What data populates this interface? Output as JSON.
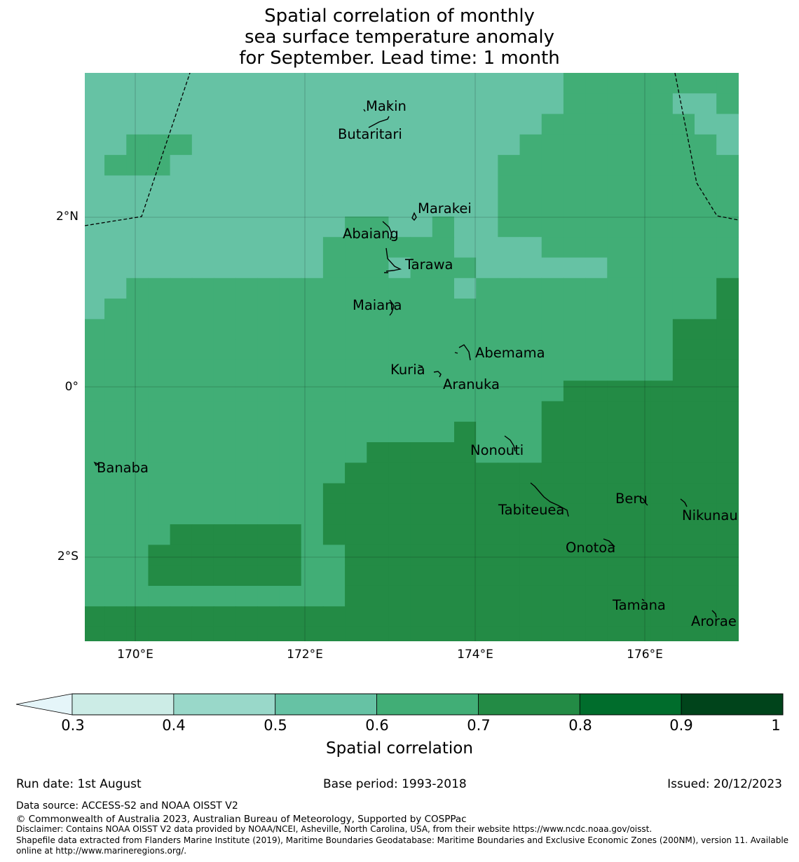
{
  "title": {
    "line1": "Spatial correlation of monthly",
    "line2": "sea surface temperature anomaly",
    "line3": "for September. Lead time: 1 month"
  },
  "axes": {
    "lat_ticks": [
      "2°N",
      "0°",
      "2°S"
    ],
    "lon_ticks": [
      "170°E",
      "172°E",
      "174°E",
      "176°E"
    ]
  },
  "places": [
    {
      "name": "Makin"
    },
    {
      "name": "Butaritari"
    },
    {
      "name": "Marakei"
    },
    {
      "name": "Abaiang"
    },
    {
      "name": "Tarawa"
    },
    {
      "name": "Maiana"
    },
    {
      "name": "Abemama"
    },
    {
      "name": "Kuria"
    },
    {
      "name": "Aranuka"
    },
    {
      "name": "Nonouti"
    },
    {
      "name": "Banaba"
    },
    {
      "name": "Tabiteuea"
    },
    {
      "name": "Beru"
    },
    {
      "name": "Nikunau"
    },
    {
      "name": "Onotoa"
    },
    {
      "name": "Tamana"
    },
    {
      "name": "Arorae"
    }
  ],
  "colorbar": {
    "title": "Spatial correlation",
    "ticks": [
      "0.3",
      "0.4",
      "0.5",
      "0.6",
      "0.7",
      "0.8",
      "0.9",
      "1"
    ],
    "colors": [
      "#e5f5f9",
      "#ccece6",
      "#99d8c9",
      "#66c2a4",
      "#41ae76",
      "#238b45",
      "#006d2c",
      "#00441b"
    ]
  },
  "footer": {
    "run_date": "Run date: 1st August",
    "base_period": "Base period: 1993-2018",
    "issued": "Issued: 20/12/2023",
    "data_source": "Data source: ACCESS-S2 and NOAA OISST V2",
    "copyright": "© Commonwealth of Australia 2023, Australian Bureau of Meteorology, Supported by COSPPac",
    "disclaimer": "Disclaimer: Contains NOAA OISST V2 data provided by NOAA/NCEI, Asheville, North Carolina, USA, from their website https://www.ncdc.noaa.gov/oisst.",
    "shapefile1": "Shapefile data extracted from Flanders Marine Institute (2019), Maritime Boundaries Geodatabase: Maritime Boundaries and Exclusive Economic Zones (200NM), version 11. Available",
    "shapefile2": "online at http://www.marineregions.org/."
  },
  "map_data": {
    "legend_level_per_cell": "0=0.5-0.6, 1=0.6-0.7, 2=0.7-0.8",
    "grid": [
      "000000000000000000000011111111",
      "000000000000000000000011111001",
      "000000000000000000000111111100",
      "001110000000000000001111111110",
      "011100000000000000011111111111",
      "000000000000000000011111111111",
      "000000000000000000011111111111",
      "000000000000110010011111111111",
      "000000000001111110000111111111",
      "000000000001110111000000111111",
      "001111111111111110111111111112",
      "011111111111111111111111111112",
      "111111111111111111111111111222",
      "111111111111111111111111111222",
      "111111111111111111111111111222",
      "111111111111111111111122222222",
      "111111111111111111111222222222",
      "111111111111111112111222222222",
      "111111111111122222111222222222",
      "111111111111222222222222222222",
      "111111111112222222222222222222",
      "111111111112222222222222222222",
      "111122222212222222222222222222",
      "111222222211222222222222222222",
      "111222222211222222222222222222",
      "111111111111222222222222222222",
      "222222222222222222222222222222",
      "222222222222222222222222222222"
    ]
  }
}
